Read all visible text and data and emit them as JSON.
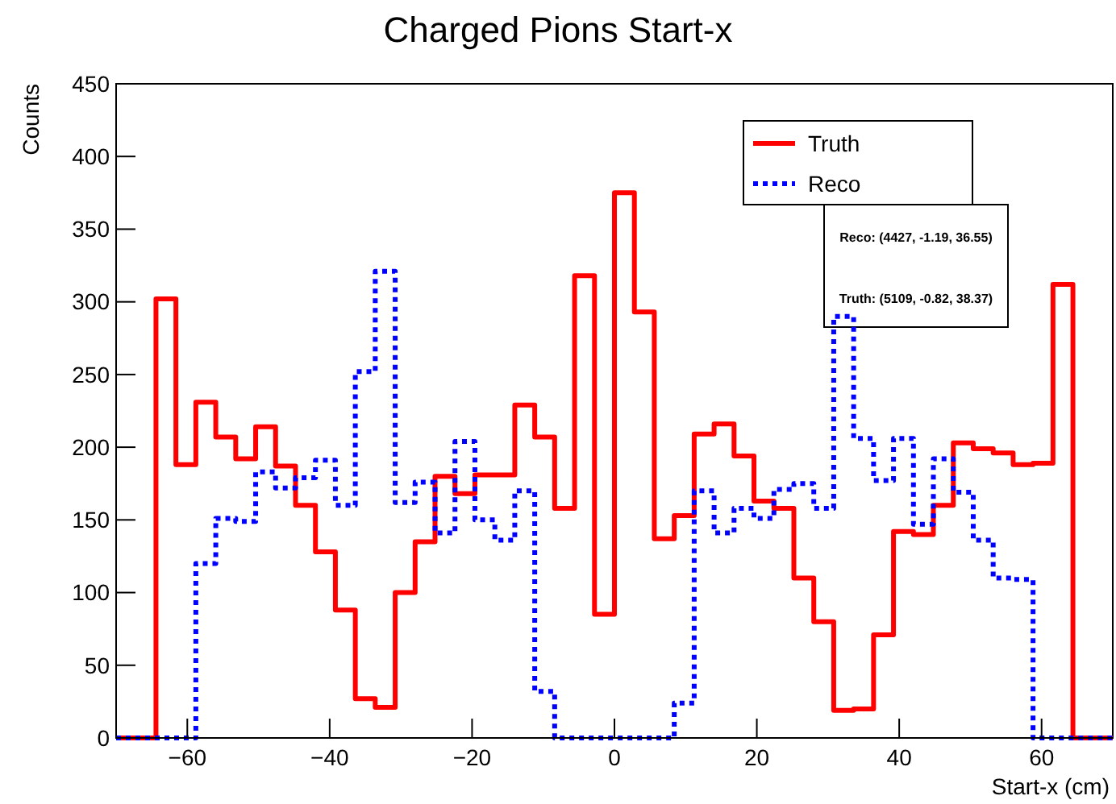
{
  "chart_data": {
    "type": "histogram",
    "title": "Charged Pions Start-x",
    "xlabel": "Start-x (cm)",
    "ylabel": "Counts",
    "bins": [
      -70,
      -67.2,
      -64.4,
      -61.6,
      -58.8,
      -56,
      -53.2,
      -50.4,
      -47.6,
      -44.8,
      -42,
      -39.2,
      -36.4,
      -33.6,
      -30.8,
      -28,
      -25.2,
      -22.4,
      -19.6,
      -16.8,
      -14,
      -11.2,
      -8.4,
      -5.6,
      -2.8,
      0,
      2.8,
      5.6,
      8.4,
      11.2,
      14,
      16.8,
      19.6,
      22.4,
      25.2,
      28,
      30.8,
      33.6,
      36.4,
      39.2,
      42,
      44.8,
      47.6,
      50.4,
      53.2,
      56,
      58.8,
      61.6,
      64.4,
      67.2,
      70
    ],
    "series": [
      {
        "name": "Truth",
        "color": "#ff0000",
        "line_style": "solid",
        "values": [
          0,
          0,
          302,
          188,
          231,
          207,
          192,
          214,
          187,
          160,
          128,
          88,
          27,
          21,
          100,
          135,
          180,
          168,
          181,
          181,
          229,
          207,
          158,
          318,
          85,
          375,
          293,
          137,
          153,
          209,
          216,
          194,
          163,
          158,
          110,
          80,
          19,
          20,
          71,
          142,
          140,
          160,
          203,
          199,
          196,
          188,
          189,
          312,
          0,
          0
        ]
      },
      {
        "name": "Reco",
        "color": "#0000ff",
        "line_style": "dotted",
        "values": [
          0,
          0,
          0,
          0,
          120,
          151,
          149,
          183,
          172,
          179,
          191,
          160,
          252,
          321,
          162,
          176,
          141,
          204,
          150,
          136,
          170,
          32,
          0,
          0,
          0,
          0,
          0,
          0,
          24,
          170,
          141,
          158,
          151,
          171,
          175,
          158,
          290,
          206,
          177,
          206,
          147,
          192,
          169,
          136,
          110,
          109,
          0,
          0,
          0,
          0
        ]
      }
    ],
    "xlim": [
      -70,
      70
    ],
    "xticks": [
      -60,
      -40,
      -20,
      0,
      20,
      40,
      60
    ],
    "ylim": [
      0,
      450
    ],
    "yticks": [
      0,
      50,
      100,
      150,
      200,
      250,
      300,
      350,
      400,
      450
    ],
    "grid": false,
    "legend": "top right",
    "annotations": [
      "Reco: (4427, -1.19, 36.55)",
      "Truth: (5109, -0.82, 38.37)"
    ]
  }
}
